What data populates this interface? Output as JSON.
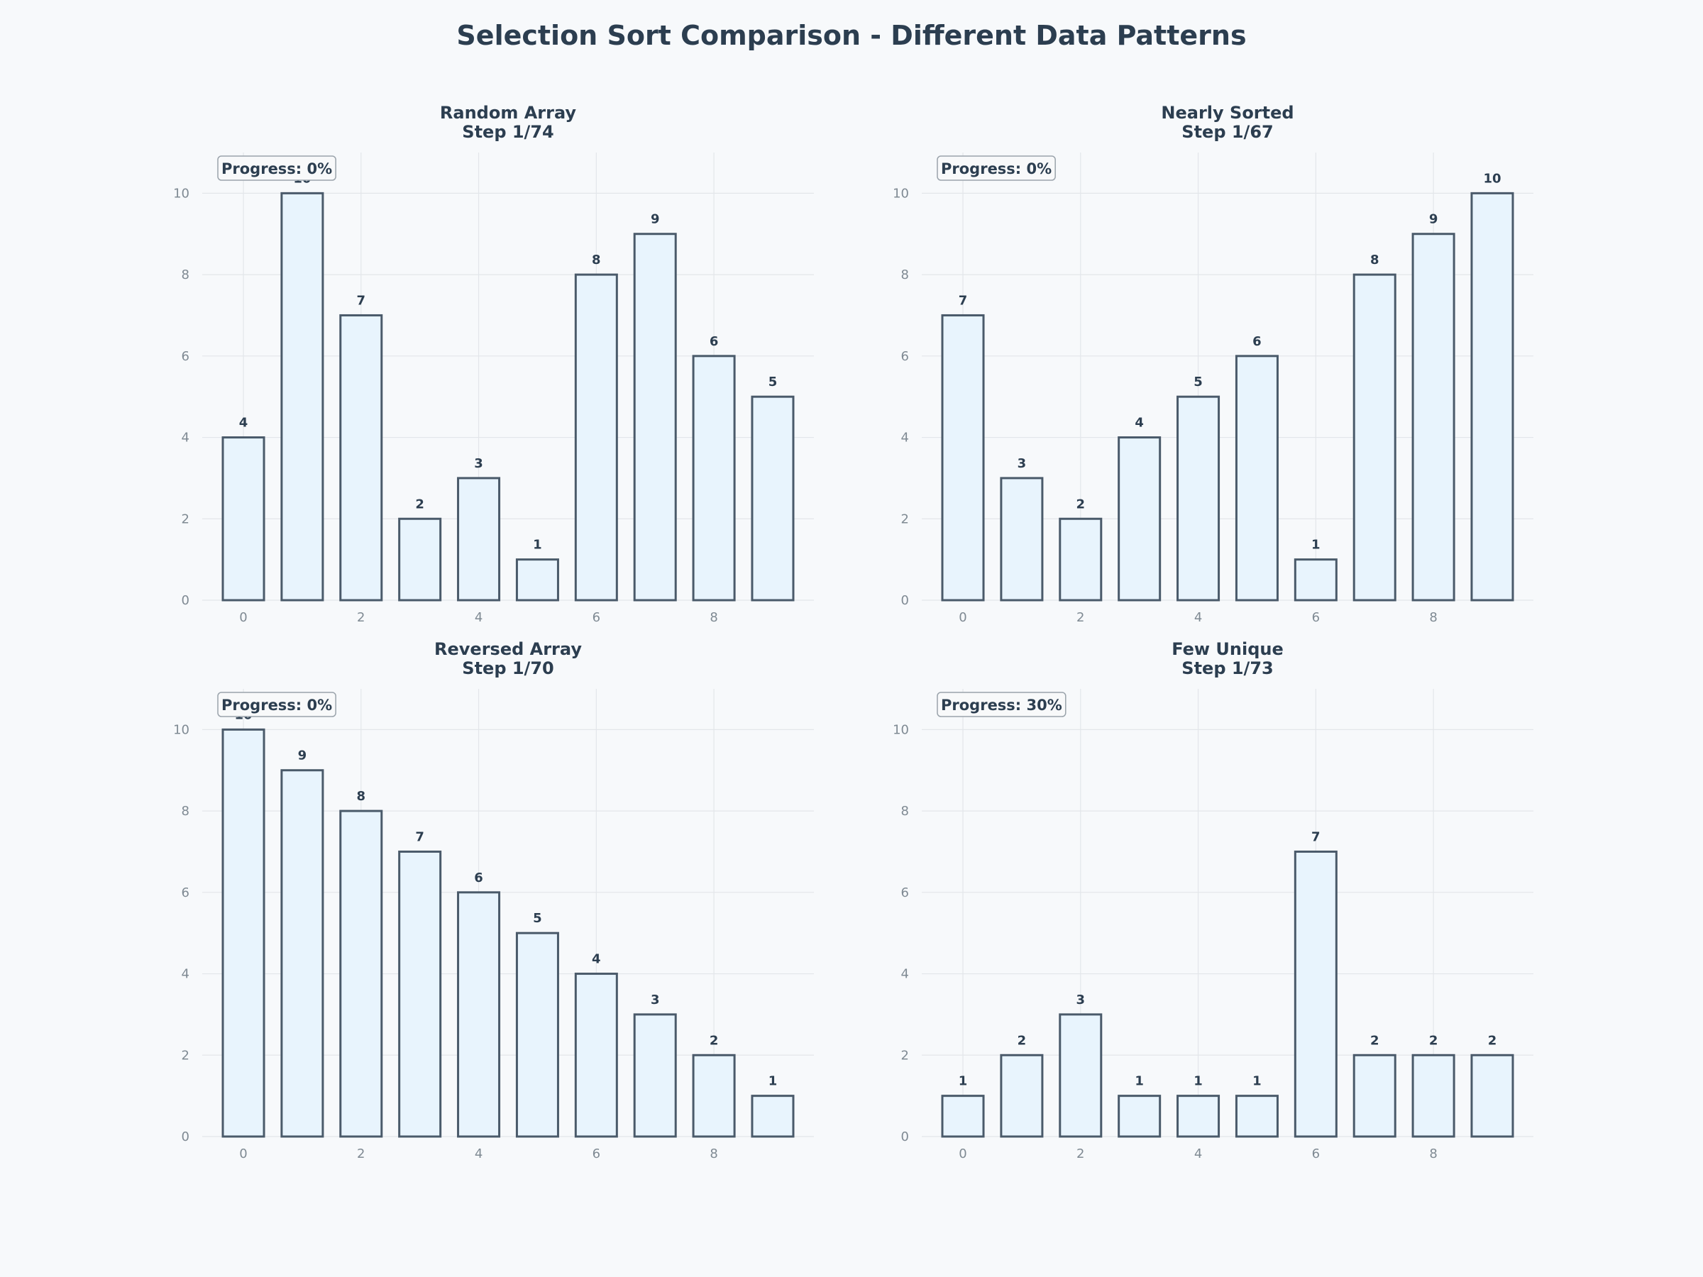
{
  "title": "Selection Sort Comparison - Different Data Patterns",
  "chart_data": [
    {
      "type": "bar",
      "title": "Random Array",
      "step": "Step 1/74",
      "progress": "Progress: 0%",
      "x": [
        0,
        1,
        2,
        3,
        4,
        5,
        6,
        7,
        8,
        9
      ],
      "values": [
        4,
        10,
        7,
        2,
        3,
        1,
        8,
        9,
        6,
        5
      ],
      "xticks": [
        0,
        2,
        4,
        6,
        8
      ],
      "yticks": [
        0,
        2,
        4,
        6,
        8,
        10
      ],
      "ylim": [
        0,
        11
      ],
      "grid": true,
      "bar_fill": "#e8f4fd",
      "bar_edge": "#4a5a6a"
    },
    {
      "type": "bar",
      "title": "Nearly Sorted",
      "step": "Step 1/67",
      "progress": "Progress: 0%",
      "x": [
        0,
        1,
        2,
        3,
        4,
        5,
        6,
        7,
        8,
        9
      ],
      "values": [
        7,
        3,
        2,
        4,
        5,
        6,
        1,
        8,
        9,
        10
      ],
      "xticks": [
        0,
        2,
        4,
        6,
        8
      ],
      "yticks": [
        0,
        2,
        4,
        6,
        8,
        10
      ],
      "ylim": [
        0,
        11
      ],
      "grid": true,
      "bar_fill": "#e8f4fd",
      "bar_edge": "#4a5a6a"
    },
    {
      "type": "bar",
      "title": "Reversed Array",
      "step": "Step 1/70",
      "progress": "Progress: 0%",
      "x": [
        0,
        1,
        2,
        3,
        4,
        5,
        6,
        7,
        8,
        9
      ],
      "values": [
        10,
        9,
        8,
        7,
        6,
        5,
        4,
        3,
        2,
        1
      ],
      "xticks": [
        0,
        2,
        4,
        6,
        8
      ],
      "yticks": [
        0,
        2,
        4,
        6,
        8,
        10
      ],
      "ylim": [
        0,
        11
      ],
      "grid": true,
      "bar_fill": "#e8f4fd",
      "bar_edge": "#4a5a6a"
    },
    {
      "type": "bar",
      "title": "Few Unique",
      "step": "Step 1/73",
      "progress": "Progress: 30%",
      "x": [
        0,
        1,
        2,
        3,
        4,
        5,
        6,
        7,
        8,
        9
      ],
      "values": [
        1,
        2,
        3,
        1,
        1,
        1,
        7,
        2,
        2,
        2
      ],
      "xticks": [
        0,
        2,
        4,
        6,
        8
      ],
      "yticks": [
        0,
        2,
        4,
        6,
        8,
        10
      ],
      "ylim": [
        0,
        11
      ],
      "grid": true,
      "bar_fill": "#e8f4fd",
      "bar_edge": "#4a5a6a"
    }
  ]
}
